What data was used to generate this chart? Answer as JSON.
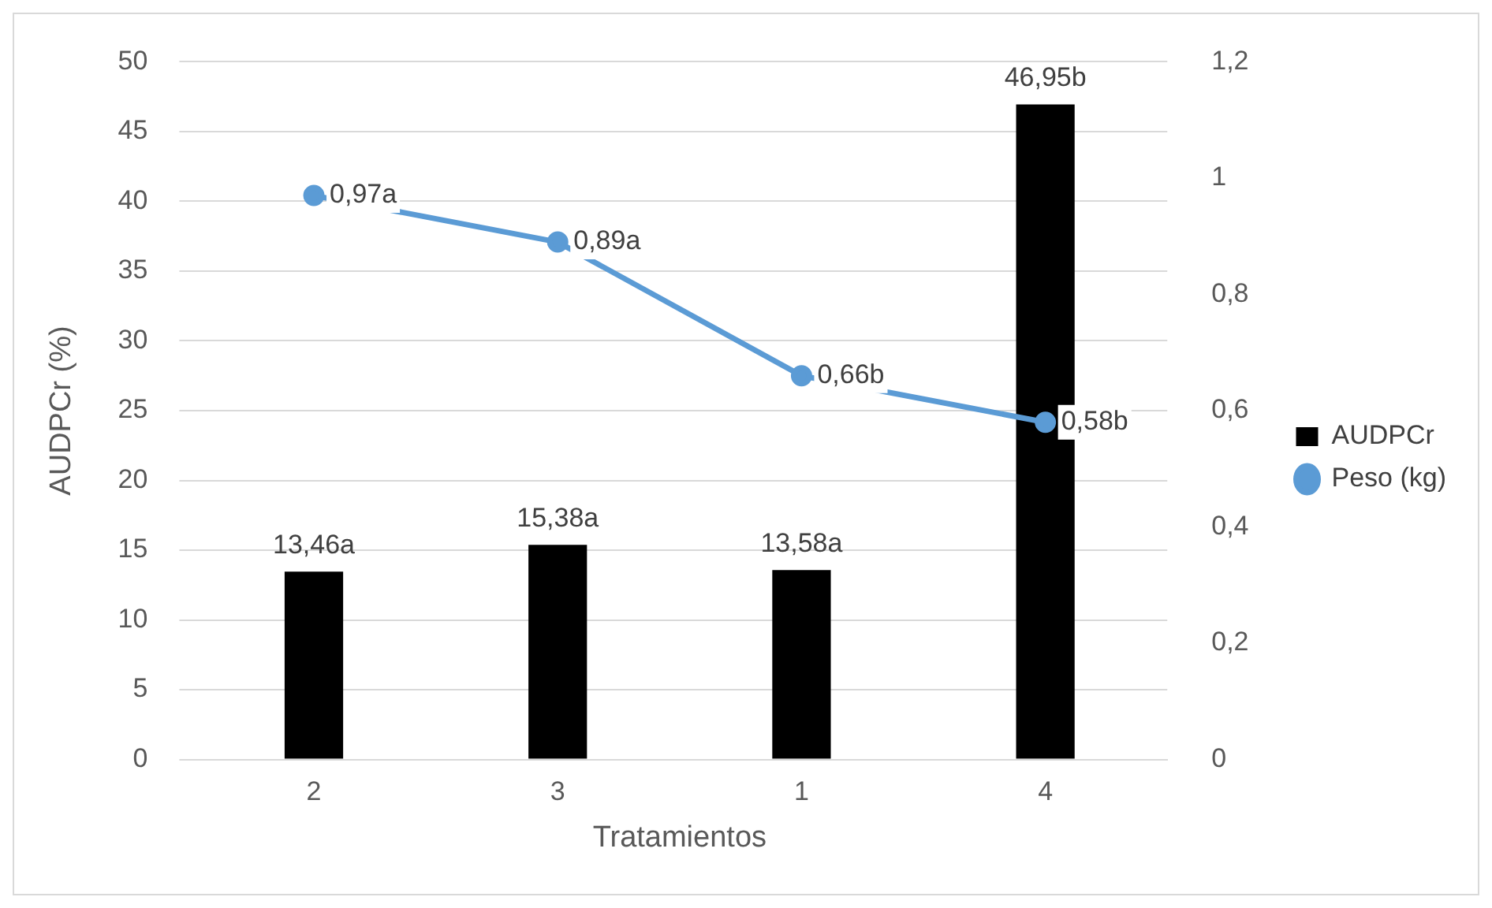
{
  "chart_data": {
    "type": "bar",
    "categories": [
      "2",
      "3",
      "1",
      "4"
    ],
    "xlabel": "Tratamientos",
    "ylabel": "AUDPCr (%)",
    "series": [
      {
        "name": "AUDPCr",
        "color": "#000000",
        "values": [
          13.46,
          15.38,
          13.58,
          46.95
        ],
        "value_labels": [
          "13,46a",
          "15,38a",
          "13,58a",
          "46,95b"
        ]
      },
      {
        "name": "Peso (kg)",
        "type": "line",
        "axis": "y2",
        "color": "#5b9bd5",
        "marker": "circle",
        "values": [
          0.97,
          0.89,
          0.66,
          0.58
        ],
        "value_labels": [
          "0,97a",
          "0,89a",
          "0,66b",
          "0,58b"
        ]
      }
    ],
    "ylim": [
      0,
      50
    ],
    "yticks": [
      0,
      5,
      10,
      15,
      20,
      25,
      30,
      35,
      40,
      45,
      50
    ],
    "y2lim": [
      0,
      1.2
    ],
    "y2ticks": [
      0,
      {
        "value": 0.2,
        "label": "0,2"
      },
      {
        "value": 0.4,
        "label": "0,4"
      },
      {
        "value": 0.6,
        "label": "0,6"
      },
      {
        "value": 0.8,
        "label": "0,8"
      },
      1,
      {
        "value": 1.2,
        "label": "1,2"
      }
    ],
    "grid": "y",
    "legend": "right"
  }
}
